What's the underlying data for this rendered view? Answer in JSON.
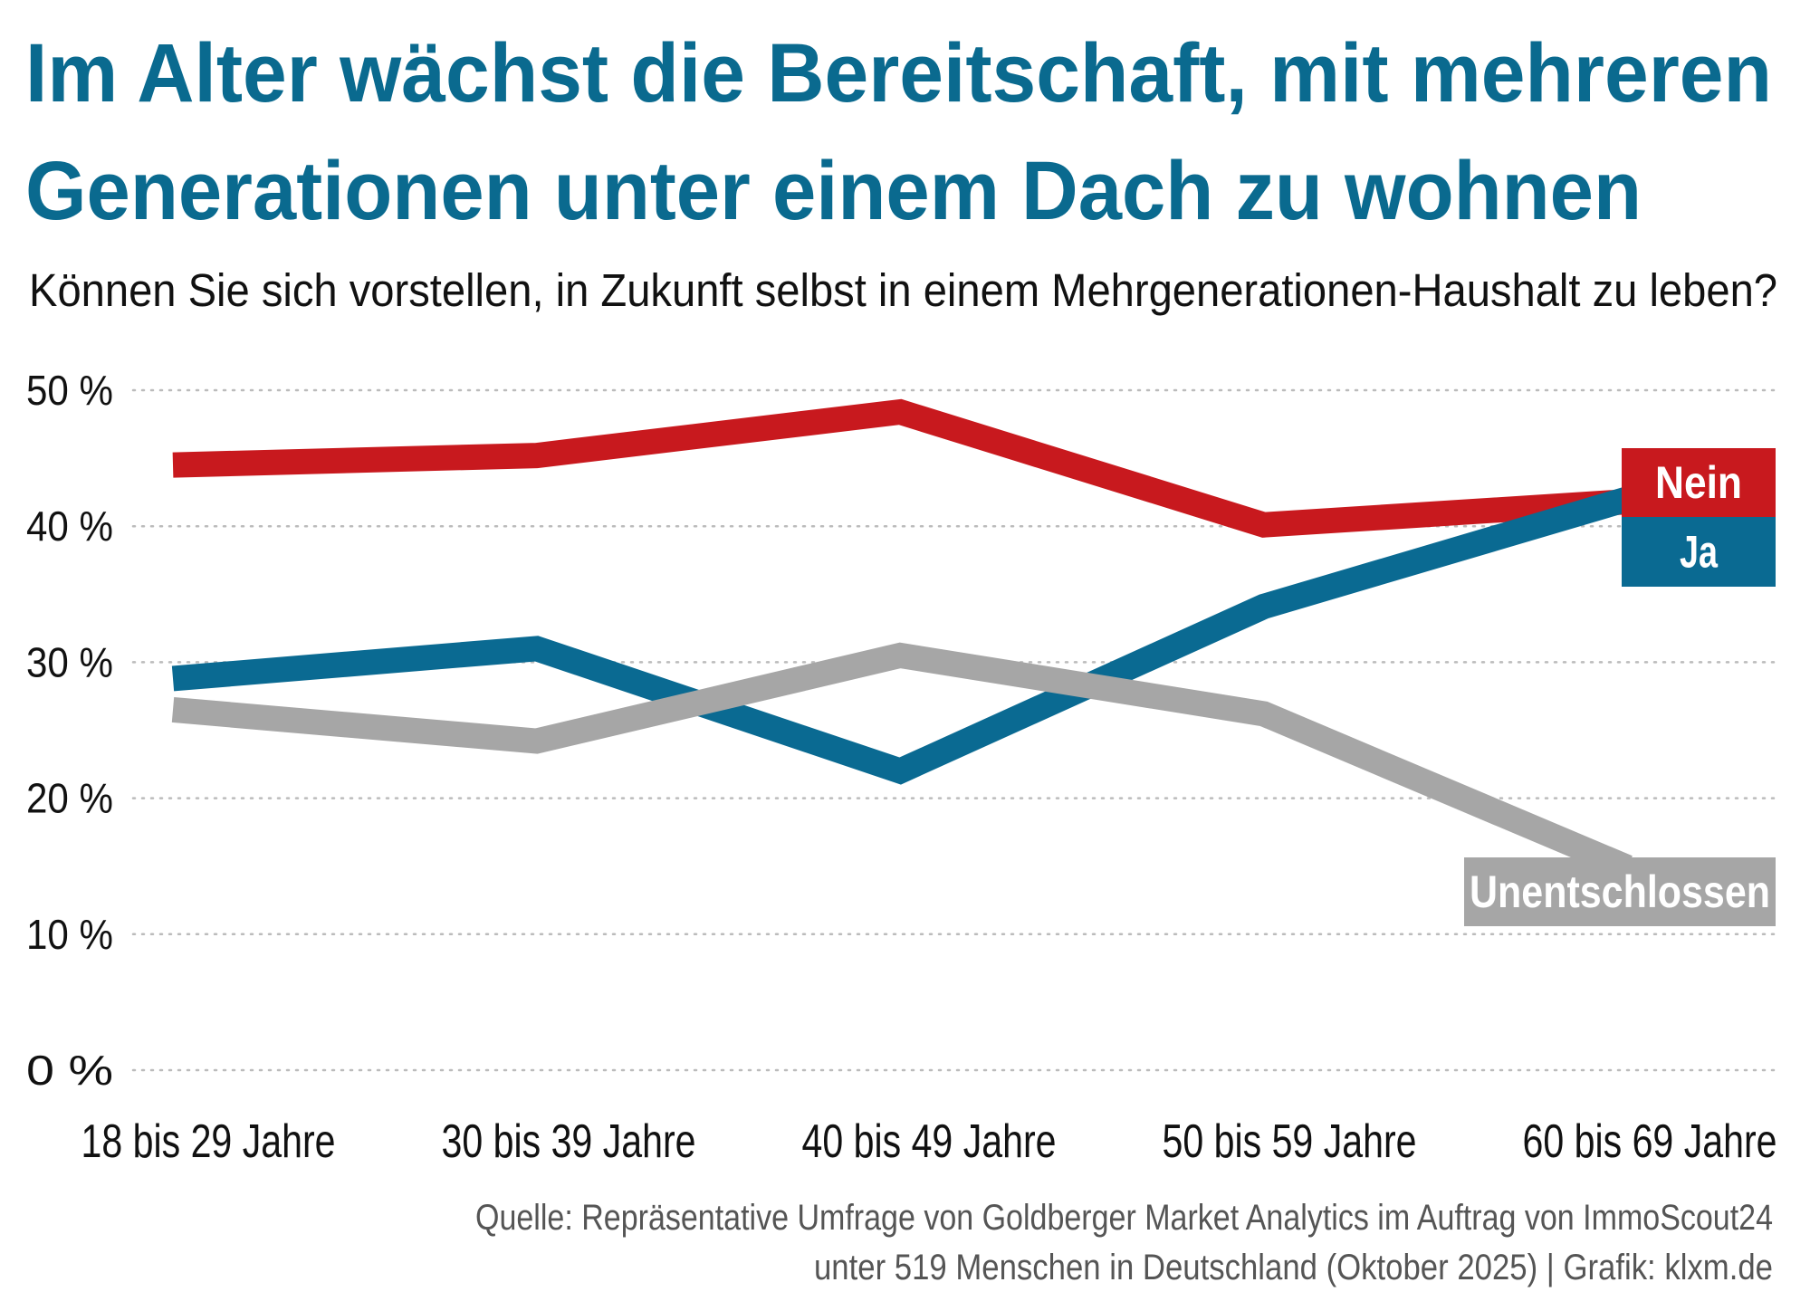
{
  "chart_data": {
    "type": "line",
    "title": [
      "Im Alter wächst die Bereitschaft, mit mehreren",
      "Generationen unter einem Dach zu wohnen"
    ],
    "subtitle": "Können Sie sich vorstellen, in Zukunft selbst in einem Mehrgenerationen-Haushalt zu leben?",
    "categories": [
      "18 bis 29 Jahre",
      "30 bis 39 Jahre",
      "40 bis 49 Jahre",
      "50 bis 59 Jahre",
      "60 bis 69 Jahre"
    ],
    "series": [
      {
        "name": "Nein",
        "color": "#c8191e",
        "values": [
          44.5,
          45.2,
          48.4,
          40.1,
          41.8
        ]
      },
      {
        "name": "Ja",
        "color": "#0a6a92",
        "values": [
          28.8,
          31.0,
          22.0,
          34.1,
          42.0
        ]
      },
      {
        "name": "Unentschlossen",
        "color": "#a6a6a6",
        "values": [
          26.5,
          24.2,
          30.5,
          26.2,
          14.9
        ]
      }
    ],
    "ylim": [
      0,
      50
    ],
    "yticks": [
      {
        "value": 0,
        "label": "0 %"
      },
      {
        "value": 10,
        "label": "10 %"
      },
      {
        "value": 20,
        "label": "20 %"
      },
      {
        "value": 30,
        "label": "30 %"
      },
      {
        "value": 40,
        "label": "40 %"
      },
      {
        "value": 50,
        "label": "50 %"
      }
    ],
    "grid": true,
    "source": [
      "Quelle: Repräsentative Umfrage von Goldberger Market Analytics im Auftrag von ImmoScout24",
      "unter 519 Menschen in Deutschland (Oktober 2025) | Grafik: klxm.de"
    ]
  }
}
